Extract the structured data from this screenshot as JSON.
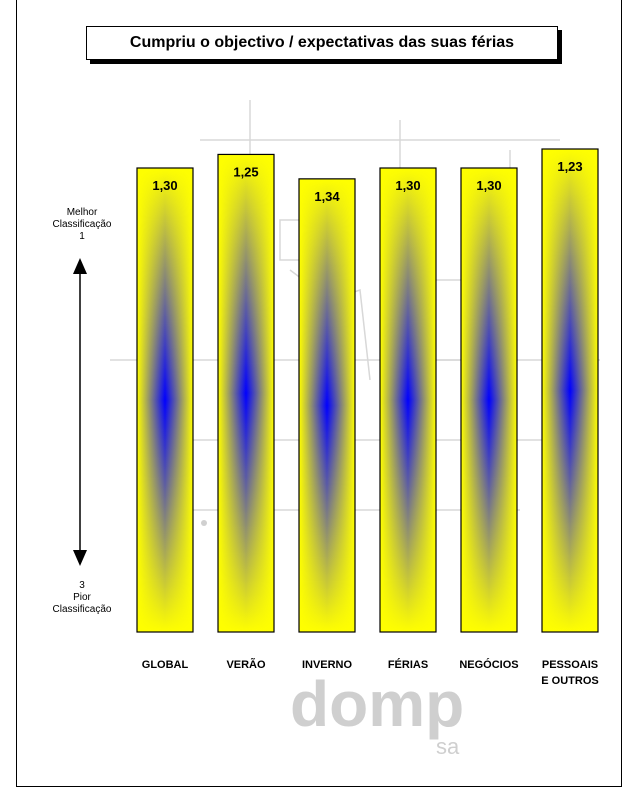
{
  "title": "Cumpriu o objectivo / expectativas das suas férias",
  "scale": {
    "top_lines": [
      "Melhor",
      "Classificação",
      "1"
    ],
    "bottom_lines": [
      "3",
      "Pior",
      "Classificação"
    ]
  },
  "logo": {
    "main": "domp",
    "sub": "sa"
  },
  "colors": {
    "bar_edge": "#ffff00",
    "bar_center": "#0000ff",
    "bar_border": "#000000"
  },
  "chart_data": {
    "type": "bar",
    "categories": [
      "GLOBAL",
      "VERÃO",
      "INVERNO",
      "FÉRIAS",
      "NEGÓCIOS",
      "PESSOAIS E OUTROS"
    ],
    "values": [
      1.3,
      1.25,
      1.34,
      1.3,
      1.3,
      1.23
    ],
    "value_labels": [
      "1,30",
      "1,25",
      "1,34",
      "1,30",
      "1,30",
      "1,23"
    ],
    "title": "Cumpriu o objectivo / expectativas das suas férias",
    "ylim": [
      1,
      3
    ],
    "y_inverted": true,
    "grid": false,
    "legend": "none"
  }
}
